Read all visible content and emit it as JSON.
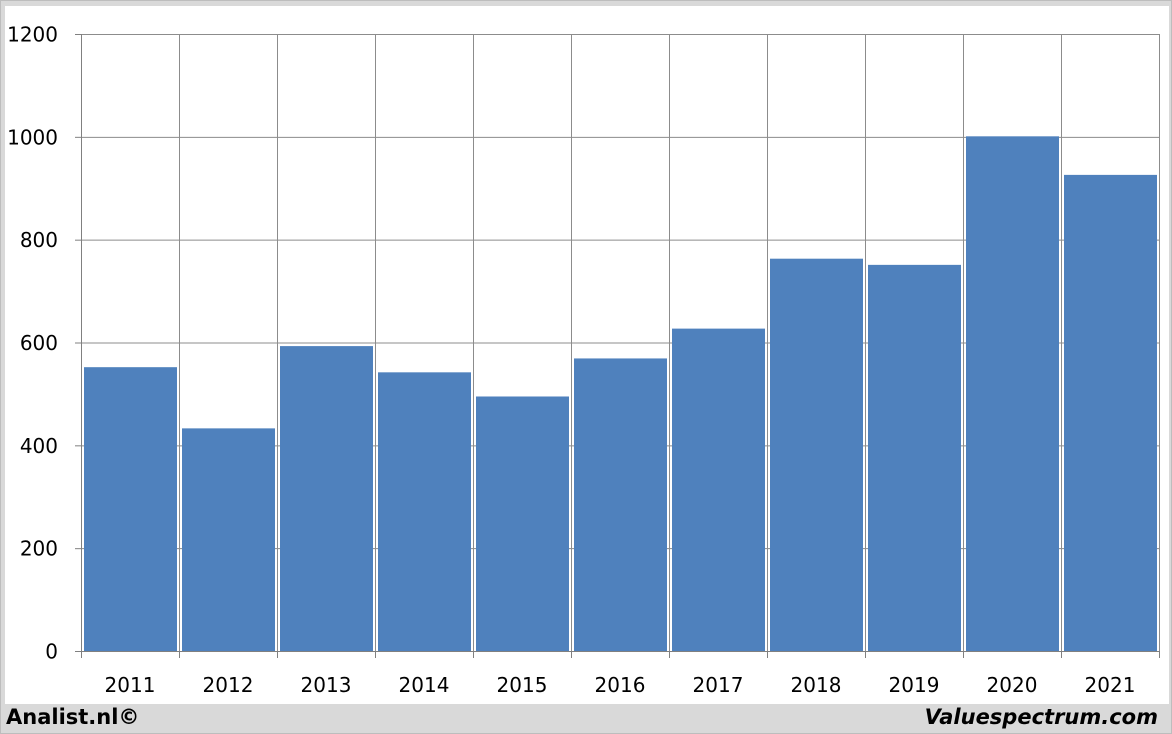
{
  "chart_data": {
    "type": "bar",
    "title": "",
    "xlabel": "",
    "ylabel": "",
    "categories": [
      "2011",
      "2012",
      "2013",
      "2014",
      "2015",
      "2016",
      "2017",
      "2018",
      "2019",
      "2020",
      "2021"
    ],
    "values": [
      552,
      433,
      593,
      542,
      495,
      569,
      627,
      763,
      751,
      1001,
      926
    ],
    "ylim": [
      0,
      1200
    ],
    "yticks": [
      0,
      200,
      400,
      600,
      800,
      1000,
      1200
    ],
    "grid": true,
    "legend": "none",
    "bar_color": "#4f81bd"
  },
  "footer": {
    "left_text": "Analist.nl©",
    "right_text": "Valuespectrum.com"
  }
}
